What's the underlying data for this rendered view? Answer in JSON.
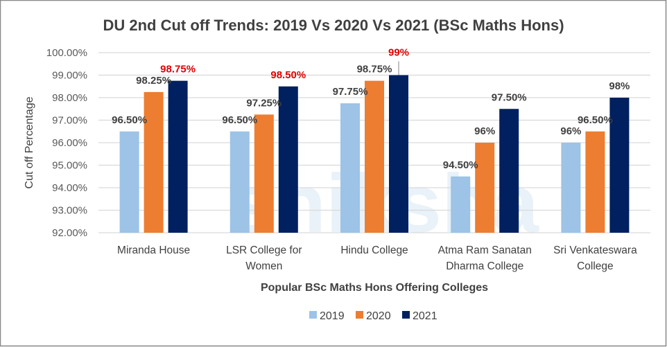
{
  "chart_data": {
    "type": "bar",
    "title": "DU 2nd Cut off Trends: 2019 Vs 2020 Vs 2021 (BSc Maths Hons)",
    "xlabel": "Popular BSc Maths Hons Offering Colleges",
    "ylabel": "Cut off Percentage",
    "ylim": [
      92,
      100
    ],
    "yticks": [
      "92.00%",
      "93.00%",
      "94.00%",
      "95.00%",
      "96.00%",
      "97.00%",
      "98.00%",
      "99.00%",
      "100.00%"
    ],
    "grid": true,
    "legend_position": "bottom",
    "categories": [
      "Miranda House",
      "LSR College for Women",
      "Hindu College",
      "Atma Ram Sanatan Dharma College",
      "Sri Venkateswara College"
    ],
    "series": [
      {
        "name": "2019",
        "color": "#9dc3e6",
        "values": [
          96.5,
          96.5,
          97.75,
          94.5,
          96
        ],
        "labels": [
          "96.50%",
          "96.50%",
          "97.75%",
          "94.50%",
          "96%"
        ],
        "label_colors": [
          "#404040",
          "#404040",
          "#404040",
          "#404040",
          "#404040"
        ]
      },
      {
        "name": "2020",
        "color": "#ed7d31",
        "values": [
          98.25,
          97.25,
          98.75,
          96,
          96.5
        ],
        "labels": [
          "98.25%",
          "97.25%",
          "98.75%",
          "96%",
          "96.50%"
        ],
        "label_colors": [
          "#404040",
          "#404040",
          "#404040",
          "#404040",
          "#404040"
        ]
      },
      {
        "name": "2021",
        "color": "#002060",
        "values": [
          98.75,
          98.5,
          99,
          97.5,
          98
        ],
        "labels": [
          "98.75%",
          "98.50%",
          "99%",
          "97.50%",
          "98%"
        ],
        "label_colors": [
          "#e00000",
          "#e00000",
          "#e00000",
          "#404040",
          "#404040"
        ]
      }
    ]
  },
  "watermark": "shiksha"
}
